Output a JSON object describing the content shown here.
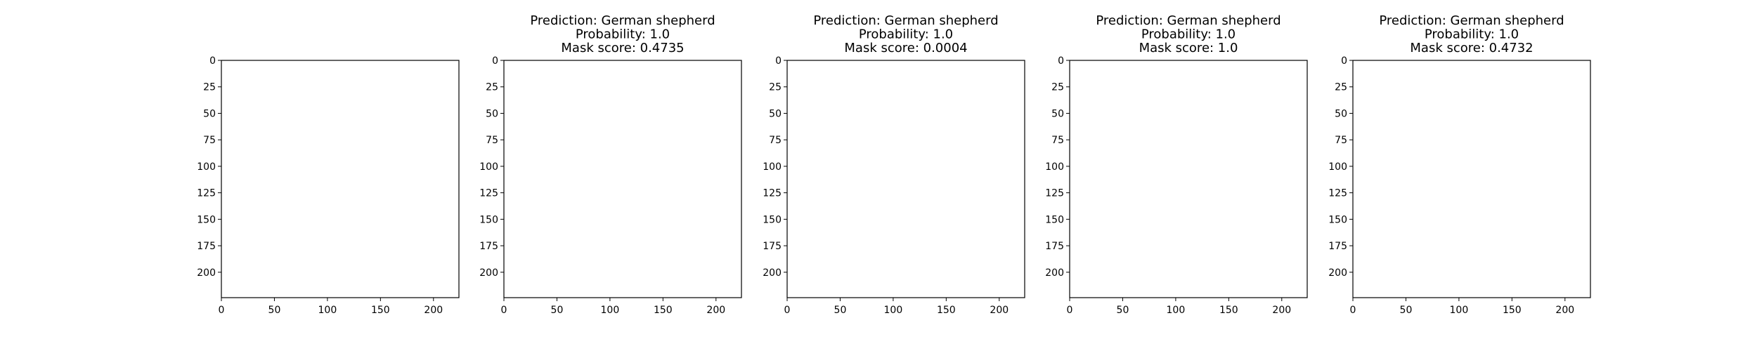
{
  "figure": {
    "panels": [
      {
        "kind": "photo",
        "title_lines": []
      },
      {
        "kind": "mask",
        "title_lines": [
          "Prediction: German shepherd",
          "Probability: 1.0",
          "Mask score: 0.4735"
        ]
      },
      {
        "kind": "mask",
        "title_lines": [
          "Prediction: German shepherd",
          "Probability: 1.0",
          "Mask score: 0.0004"
        ]
      },
      {
        "kind": "mask",
        "title_lines": [
          "Prediction: German shepherd",
          "Probability: 1.0",
          "Mask score: 1.0"
        ]
      },
      {
        "kind": "mask",
        "title_lines": [
          "Prediction: German shepherd",
          "Probability: 1.0",
          "Mask score: 0.4732"
        ]
      }
    ]
  },
  "chart_data": {
    "type": "heatmap",
    "image_size": [
      224,
      224
    ],
    "x_ticks": [
      0,
      50,
      100,
      150,
      200
    ],
    "y_ticks": [
      0,
      25,
      50,
      75,
      100,
      125,
      150,
      175,
      200
    ],
    "xlim": [
      0,
      224
    ],
    "ylim": [
      224,
      0
    ],
    "colors": {
      "background_mask": "#7f7fbf",
      "dog_mask": "#bf7f7f",
      "extra_red": "#f08878",
      "extra_blue": "#8a8ad8"
    }
  }
}
